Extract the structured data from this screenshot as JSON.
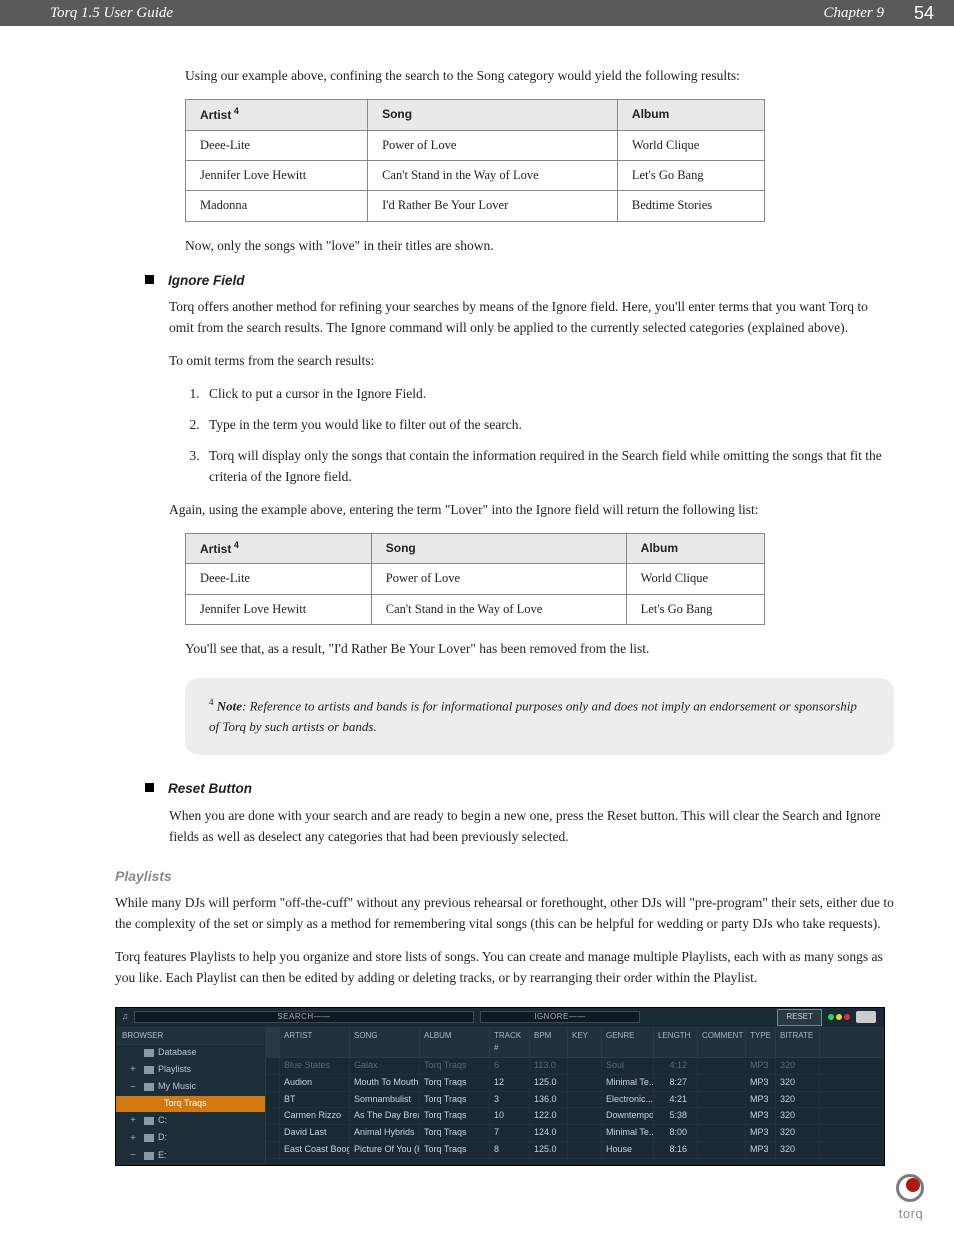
{
  "header": {
    "left": "Torq 1.5 User Guide",
    "chapter": "Chapter 9",
    "page": "54"
  },
  "intro1": "Using our example above, confining the search to the Song category would yield the following results:",
  "table1": {
    "headers": [
      "Artist",
      "Song",
      "Album"
    ],
    "header_sup": "4",
    "rows": [
      [
        "Deee-Lite",
        "Power of Love",
        "World Clique"
      ],
      [
        "Jennifer Love Hewitt",
        "Can't Stand in the Way of Love",
        "Let's Go Bang"
      ],
      [
        "Madonna",
        "I'd Rather Be Your Lover",
        "Bedtime Stories"
      ]
    ]
  },
  "intro2": "Now, only the songs with \"love\" in their titles are shown.",
  "ignore": {
    "title": "Ignore Field",
    "p1": "Torq offers another method for refining your searches by means of the Ignore field. Here, you'll enter terms that you want Torq to omit from the search results. The Ignore command will only be applied to the currently selected categories (explained above).",
    "p2": "To omit terms from the search results:",
    "steps": [
      "Click to put a cursor in the Ignore Field.",
      "Type in the term you would like to filter out of the search.",
      "Torq will display only the songs that contain the information required in the Search field while omitting the songs that fit the criteria of the Ignore field."
    ],
    "p3": "Again, using the example above, entering the term \"Lover\" into the Ignore field will return the following list:"
  },
  "table2": {
    "headers": [
      "Artist",
      "Song",
      "Album"
    ],
    "header_sup": "4",
    "rows": [
      [
        "Deee-Lite",
        "Power of Love",
        "World Clique"
      ],
      [
        "Jennifer Love Hewitt",
        "Can't Stand in the Way of Love",
        "Let's Go Bang"
      ]
    ]
  },
  "after_t2": "You'll see that, as a result, \"I'd Rather Be Your Lover\" has been removed from the list.",
  "note": {
    "sup": "4",
    "label": "Note",
    "text": ": Reference to artists and bands is for informational purposes only and does not imply an endorsement or sponsorship of Torq by such artists or bands."
  },
  "reset": {
    "title": "Reset Button",
    "body": "When you are done with your search and are ready to begin a new one, press the Reset button. This will clear the Search and Ignore fields as well as deselect any categories that had been previously selected."
  },
  "playlists": {
    "title": "Playlists",
    "p1": "While many DJs will perform \"off-the-cuff\" without any previous rehearsal or forethought, other DJs will \"pre-program\" their sets, either due to the complexity of the set or simply as a method for remembering vital songs (this can be helpful for wedding or party DJs who take requests).",
    "p2": "Torq features Playlists to help you organize and store lists of songs. You can create and manage multiple Playlists, each with as many songs as you like. Each Playlist can then be edited by adding or deleting tracks, or by rearranging their order within the Playlist."
  },
  "screenshot": {
    "search_label": "SEARCH",
    "ignore_label": "IGNORE",
    "reset_label": "RESET",
    "browser_label": "BROWSER",
    "sidebar": [
      {
        "label": "Database",
        "level": 1,
        "exp": ""
      },
      {
        "label": "Playlists",
        "level": 1,
        "exp": "+"
      },
      {
        "label": "My Music",
        "level": 1,
        "exp": "−"
      },
      {
        "label": "Torq Traqs",
        "level": 3,
        "exp": "",
        "sel": true
      },
      {
        "label": "C:",
        "level": 1,
        "exp": "+"
      },
      {
        "label": "D:",
        "level": 1,
        "exp": "+"
      },
      {
        "label": "E:",
        "level": 1,
        "exp": "−"
      }
    ],
    "columns": [
      "",
      "ARTIST",
      "SONG",
      "ALBUM",
      "TRACK #",
      "BPM",
      "KEY",
      "GENRE",
      "LENGTH",
      "COMMENT",
      "TYPE",
      "BITRATE",
      ""
    ],
    "rows": [
      {
        "sel": true,
        "cells": [
          "",
          "Blue States",
          "Galax",
          "Torq Traqs",
          "6",
          "113.0",
          "",
          "Soul",
          "4:12",
          "",
          "MP3",
          "320",
          ""
        ]
      },
      {
        "cells": [
          "",
          "Audion",
          "Mouth To Mouth",
          "Torq Traqs",
          "12",
          "125.0",
          "",
          "Minimal Te...",
          "8:27",
          "",
          "MP3",
          "320",
          ""
        ]
      },
      {
        "cells": [
          "",
          "BT",
          "Somnambulist",
          "Torq Traqs",
          "3",
          "136.0",
          "",
          "Electronic...",
          "4:21",
          "",
          "MP3",
          "320",
          ""
        ]
      },
      {
        "cells": [
          "",
          "Carmen Rizzo",
          "As The Day Breaks",
          "Torq Traqs",
          "10",
          "122.0",
          "",
          "Downtempo",
          "5:38",
          "",
          "MP3",
          "320",
          ""
        ]
      },
      {
        "cells": [
          "",
          "David Last",
          "Animal Hybrids",
          "Torq Traqs",
          "7",
          "124.0",
          "",
          "Minimal Te...",
          "8:00",
          "",
          "MP3",
          "320",
          ""
        ]
      },
      {
        "cells": [
          "",
          "East Coast Boogieme...",
          "Picture Of You (Ken's Dr...",
          "Torq Traqs",
          "8",
          "125.0",
          "",
          "House",
          "8:16",
          "",
          "MP3",
          "320",
          ""
        ]
      }
    ]
  },
  "logo_text": "torq"
}
